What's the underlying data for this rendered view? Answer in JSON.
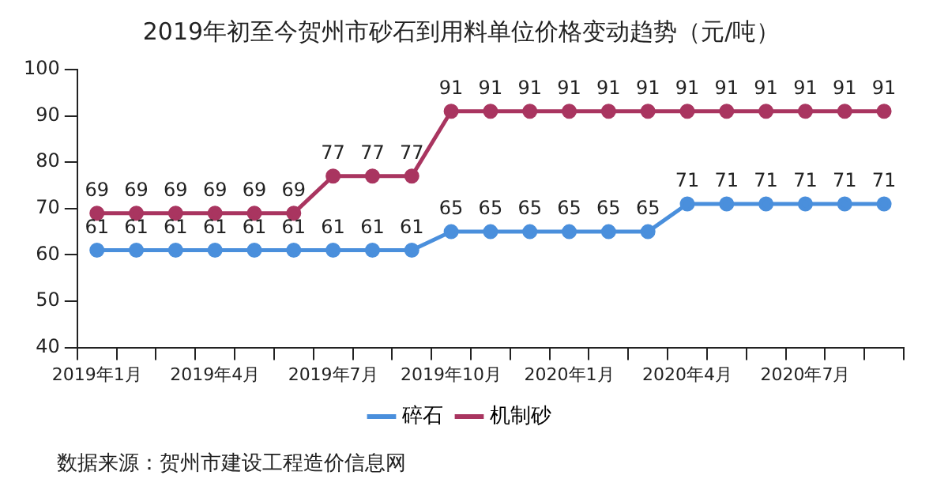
{
  "chart_data": {
    "type": "line",
    "title": "2019年初至今贺州市砂石到用料单位价格变动趋势（元/吨）",
    "categories": [
      "2019年1月",
      null,
      null,
      "2019年4月",
      null,
      null,
      "2019年7月",
      null,
      null,
      "2019年10月",
      null,
      null,
      "2020年1月",
      null,
      null,
      "2020年4月",
      null,
      null,
      "2020年7月",
      null,
      null
    ],
    "series": [
      {
        "name": "碎石",
        "color": "#4a8fdc",
        "values": [
          61,
          61,
          61,
          61,
          61,
          61,
          61,
          61,
          61,
          65,
          65,
          65,
          65,
          65,
          65,
          71,
          71,
          71,
          71,
          71,
          71
        ]
      },
      {
        "name": "机制砂",
        "color": "#a93560",
        "values": [
          69,
          69,
          69,
          69,
          69,
          69,
          77,
          77,
          77,
          91,
          91,
          91,
          91,
          91,
          91,
          91,
          91,
          91,
          91,
          91,
          91
        ]
      }
    ],
    "ylim": [
      40,
      100
    ],
    "yticks": [
      40,
      50,
      60,
      70,
      80,
      90,
      100
    ],
    "grid": false,
    "legend": "bottom",
    "marker": "circle",
    "line_style": "solid",
    "data_labels": true,
    "annotations": [
      "数据来源：贺州市建设工程造价信息网"
    ]
  }
}
